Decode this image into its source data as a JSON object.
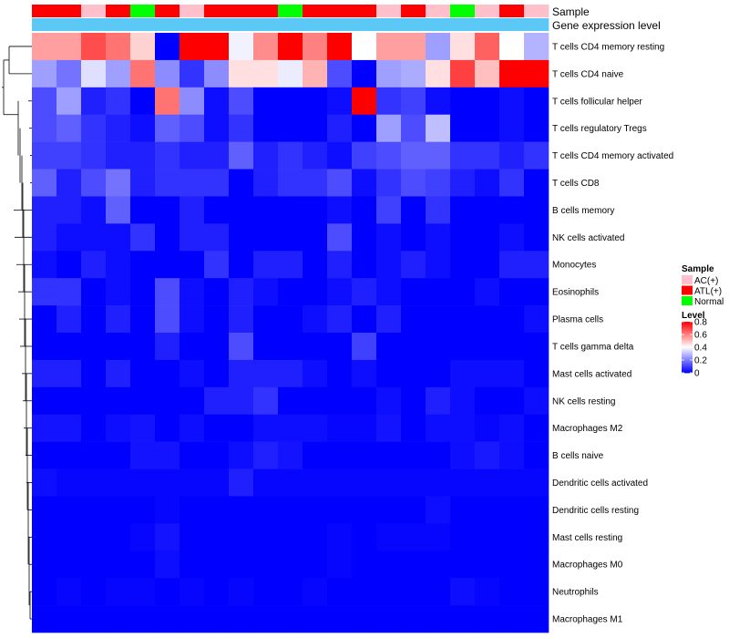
{
  "chart_data": {
    "type": "heatmap",
    "annotation_rows": [
      {
        "name": "Sample",
        "values": [
          "ATL(+)",
          "ATL(+)",
          "AC(+)",
          "ATL(+)",
          "Normal",
          "ATL(+)",
          "AC(+)",
          "ATL(+)",
          "ATL(+)",
          "ATL(+)",
          "Normal",
          "ATL(+)",
          "ATL(+)",
          "ATL(+)",
          "AC(+)",
          "ATL(+)",
          "AC(+)",
          "Normal",
          "AC(+)",
          "ATL(+)",
          "AC(+)"
        ]
      },
      {
        "name": "Gene expression level",
        "values": [
          "Gene expression level",
          "Gene expression level",
          "Gene expression level",
          "Gene expression level",
          "Gene expression level",
          "Gene expression level",
          "Gene expression level",
          "Gene expression level",
          "Gene expression level",
          "Gene expression level",
          "Gene expression level",
          "Gene expression level",
          "Gene expression level",
          "Gene expression level",
          "Gene expression level",
          "Gene expression level",
          "Gene expression level",
          "Gene expression level",
          "Gene expression level",
          "Gene expression level",
          "Gene expression level"
        ]
      }
    ],
    "rows": [
      "T cells CD4 memory resting",
      "T cells CD4 naive",
      "T cells follicular helper",
      "T cells regulatory  Tregs",
      "T cells CD4 memory activated",
      "T cells CD8",
      "B cells memory",
      "NK cells activated",
      "Monocytes",
      "Eosinophils",
      "Plasma cells",
      "T cells gamma delta",
      "Mast cells activated",
      "NK cells resting",
      "Macrophages M2",
      "B cells naive",
      "Dendritic cells activated",
      "Dendritic cells resting",
      "Mast cells resting",
      "Macrophages M0",
      "Neutrophils",
      "Macrophages M1"
    ],
    "values": [
      [
        0.55,
        0.55,
        0.68,
        0.62,
        0.47,
        0.0,
        0.82,
        0.82,
        0.38,
        0.58,
        0.82,
        0.6,
        0.82,
        0.4,
        0.55,
        0.55,
        0.25,
        0.45,
        0.65,
        0.4,
        0.28
      ],
      [
        0.25,
        0.18,
        0.35,
        0.25,
        0.62,
        0.22,
        0.08,
        0.22,
        0.45,
        0.45,
        0.37,
        0.52,
        0.12,
        0.0,
        0.25,
        0.27,
        0.45,
        0.7,
        0.5,
        0.82,
        0.82
      ],
      [
        0.12,
        0.25,
        0.05,
        0.08,
        0.0,
        0.62,
        0.22,
        0.02,
        0.12,
        0.0,
        0.0,
        0.0,
        0.02,
        0.8,
        0.08,
        0.1,
        0.02,
        0.0,
        0.0,
        0.02,
        0.0
      ],
      [
        0.12,
        0.15,
        0.08,
        0.05,
        0.02,
        0.15,
        0.12,
        0.02,
        0.08,
        0.0,
        0.0,
        0.0,
        0.05,
        0.0,
        0.25,
        0.12,
        0.3,
        0.0,
        0.0,
        0.02,
        0.0
      ],
      [
        0.1,
        0.1,
        0.08,
        0.05,
        0.05,
        0.08,
        0.05,
        0.05,
        0.15,
        0.05,
        0.08,
        0.05,
        0.02,
        0.1,
        0.12,
        0.15,
        0.15,
        0.08,
        0.08,
        0.05,
        0.08
      ],
      [
        0.15,
        0.05,
        0.12,
        0.18,
        0.05,
        0.08,
        0.08,
        0.08,
        0.0,
        0.05,
        0.08,
        0.08,
        0.12,
        0.02,
        0.08,
        0.12,
        0.1,
        0.05,
        0.02,
        0.08,
        0.0
      ],
      [
        0.05,
        0.05,
        0.02,
        0.15,
        0.0,
        0.0,
        0.05,
        0.0,
        0.0,
        0.0,
        0.0,
        0.0,
        0.02,
        0.0,
        0.1,
        0.0,
        0.08,
        0.0,
        0.0,
        0.0,
        0.0
      ],
      [
        0.05,
        0.02,
        0.02,
        0.02,
        0.08,
        0.0,
        0.05,
        0.05,
        0.0,
        0.0,
        0.0,
        0.0,
        0.12,
        0.0,
        0.02,
        0.0,
        0.02,
        0.0,
        0.0,
        0.02,
        0.0
      ],
      [
        0.02,
        0.0,
        0.05,
        0.02,
        0.0,
        0.0,
        0.0,
        0.08,
        0.0,
        0.05,
        0.05,
        0.0,
        0.05,
        0.0,
        0.02,
        0.05,
        0.02,
        0.0,
        0.0,
        0.05,
        0.05
      ],
      [
        0.08,
        0.08,
        0.0,
        0.02,
        0.0,
        0.12,
        0.02,
        0.0,
        0.05,
        0.02,
        0.0,
        0.0,
        0.02,
        0.05,
        0.02,
        0.0,
        0.0,
        0.0,
        0.02,
        0.0,
        0.0
      ],
      [
        0.0,
        0.05,
        0.0,
        0.05,
        0.0,
        0.12,
        0.02,
        0.0,
        0.05,
        0.0,
        0.0,
        0.02,
        0.05,
        0.0,
        0.05,
        0.0,
        0.0,
        0.0,
        0.0,
        0.0,
        0.02
      ],
      [
        0.0,
        0.0,
        0.0,
        0.0,
        0.0,
        0.05,
        0.0,
        0.0,
        0.12,
        0.0,
        0.0,
        0.0,
        0.0,
        0.1,
        0.0,
        0.0,
        0.0,
        0.0,
        0.0,
        0.0,
        0.0
      ],
      [
        0.05,
        0.05,
        0.0,
        0.05,
        0.0,
        0.0,
        0.02,
        0.0,
        0.05,
        0.05,
        0.05,
        0.02,
        0.0,
        0.02,
        0.0,
        0.0,
        0.0,
        0.02,
        0.02,
        0.02,
        0.0
      ],
      [
        0.0,
        0.0,
        0.0,
        0.0,
        0.0,
        0.0,
        0.0,
        0.05,
        0.05,
        0.08,
        0.0,
        0.0,
        0.0,
        0.0,
        0.02,
        0.0,
        0.05,
        0.02,
        0.0,
        0.0,
        0.02
      ],
      [
        0.03,
        0.03,
        0.0,
        0.02,
        0.03,
        0.0,
        0.02,
        0.0,
        0.0,
        0.02,
        0.02,
        0.02,
        0.01,
        0.01,
        0.03,
        0.0,
        0.02,
        0.02,
        0.01,
        0.02,
        0.0
      ],
      [
        0.0,
        0.0,
        0.0,
        0.0,
        0.03,
        0.03,
        0.0,
        0.0,
        0.02,
        0.05,
        0.03,
        0.0,
        0.0,
        0.0,
        0.0,
        0.0,
        0.0,
        0.02,
        0.04,
        0.02,
        0.0
      ],
      [
        0.02,
        0.01,
        0.01,
        0.01,
        0.01,
        0.01,
        0.01,
        0.01,
        0.05,
        0.01,
        0.01,
        0.01,
        0.01,
        0.01,
        0.01,
        0.01,
        0.01,
        0.01,
        0.01,
        0.01,
        0.01
      ],
      [
        0.0,
        0.0,
        0.0,
        0.0,
        0.0,
        0.01,
        0.0,
        0.0,
        0.0,
        0.0,
        0.0,
        0.0,
        0.0,
        0.0,
        0.0,
        0.0,
        0.02,
        0.0,
        0.0,
        0.0,
        0.0
      ],
      [
        0.0,
        0.0,
        0.0,
        0.0,
        0.01,
        0.03,
        0.0,
        0.0,
        0.0,
        0.0,
        0.0,
        0.0,
        0.01,
        0.0,
        0.01,
        0.01,
        0.01,
        0.0,
        0.0,
        0.0,
        0.0
      ],
      [
        0.0,
        0.0,
        0.0,
        0.0,
        0.0,
        0.02,
        0.0,
        0.0,
        0.0,
        0.0,
        0.0,
        0.0,
        0.01,
        0.0,
        0.0,
        0.0,
        0.0,
        0.0,
        0.0,
        0.0,
        0.0
      ],
      [
        0.0,
        0.01,
        0.0,
        0.01,
        0.01,
        0.0,
        0.01,
        0.0,
        0.01,
        0.0,
        0.0,
        0.01,
        0.0,
        0.0,
        0.0,
        0.0,
        0.0,
        0.02,
        0.01,
        0.0,
        0.0
      ],
      [
        0.0,
        0.0,
        0.0,
        0.0,
        0.0,
        0.0,
        0.0,
        0.0,
        0.0,
        0.0,
        0.0,
        0.0,
        0.0,
        0.0,
        0.0,
        0.0,
        0.0,
        0.0,
        0.0,
        0.0,
        0.0
      ]
    ],
    "color_scale": {
      "min": 0,
      "mid": 0.4,
      "max": 0.8,
      "low": "#0000FF",
      "mid_color": "#FFFFFF",
      "high": "#FF0000"
    },
    "legend": {
      "sample_title": "Sample",
      "sample_entries": [
        {
          "label": "AC(+)",
          "color": "#FFC0CB"
        },
        {
          "label": "ATL(+)",
          "color": "#FF0000"
        },
        {
          "label": "Normal",
          "color": "#00FF00"
        }
      ],
      "level_title": "Level",
      "level_ticks": [
        0.8,
        0.6,
        0.4,
        0.2,
        0
      ],
      "level_tick_labels": [
        "0.8",
        "0.6",
        "0.4",
        "0.2",
        "0"
      ],
      "placement": "right"
    },
    "annotation_colors": {
      "Gene expression level": "#5BC8F5"
    },
    "dendrogram": "left-rows"
  }
}
